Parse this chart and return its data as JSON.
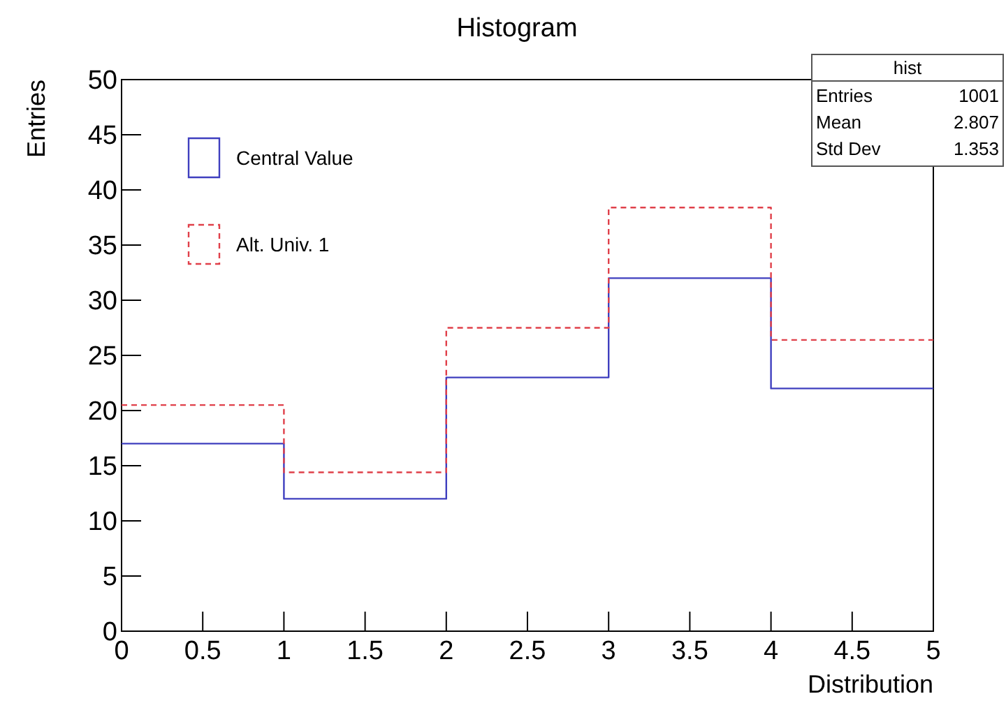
{
  "chart_data": {
    "type": "histogram",
    "title": "Histogram",
    "xlabel": "Distribution",
    "ylabel": "Entries",
    "bins": [
      0,
      1,
      2,
      3,
      4,
      5
    ],
    "series": [
      {
        "name": "Central Value",
        "color": "#3f3fbf",
        "line_style": "solid",
        "values": [
          17,
          12,
          23,
          32,
          22
        ]
      },
      {
        "name": "Alt. Univ. 1",
        "color": "#e0404a",
        "line_style": "dashed",
        "values": [
          20.5,
          14.4,
          27.5,
          38.4,
          26.4
        ]
      }
    ],
    "xlim": [
      0,
      5
    ],
    "xticks": [
      0,
      0.5,
      1,
      1.5,
      2,
      2.5,
      3,
      3.5,
      4,
      4.5,
      5
    ],
    "ylim": [
      0,
      50
    ],
    "yticks": [
      0,
      5,
      10,
      15,
      20,
      25,
      30,
      35,
      40,
      45,
      50
    ],
    "grid": false,
    "legend": "top left",
    "annotations": [
      "hist",
      "Entries",
      "1001",
      "Mean",
      "2.807",
      "Std Dev",
      "1.353"
    ]
  }
}
